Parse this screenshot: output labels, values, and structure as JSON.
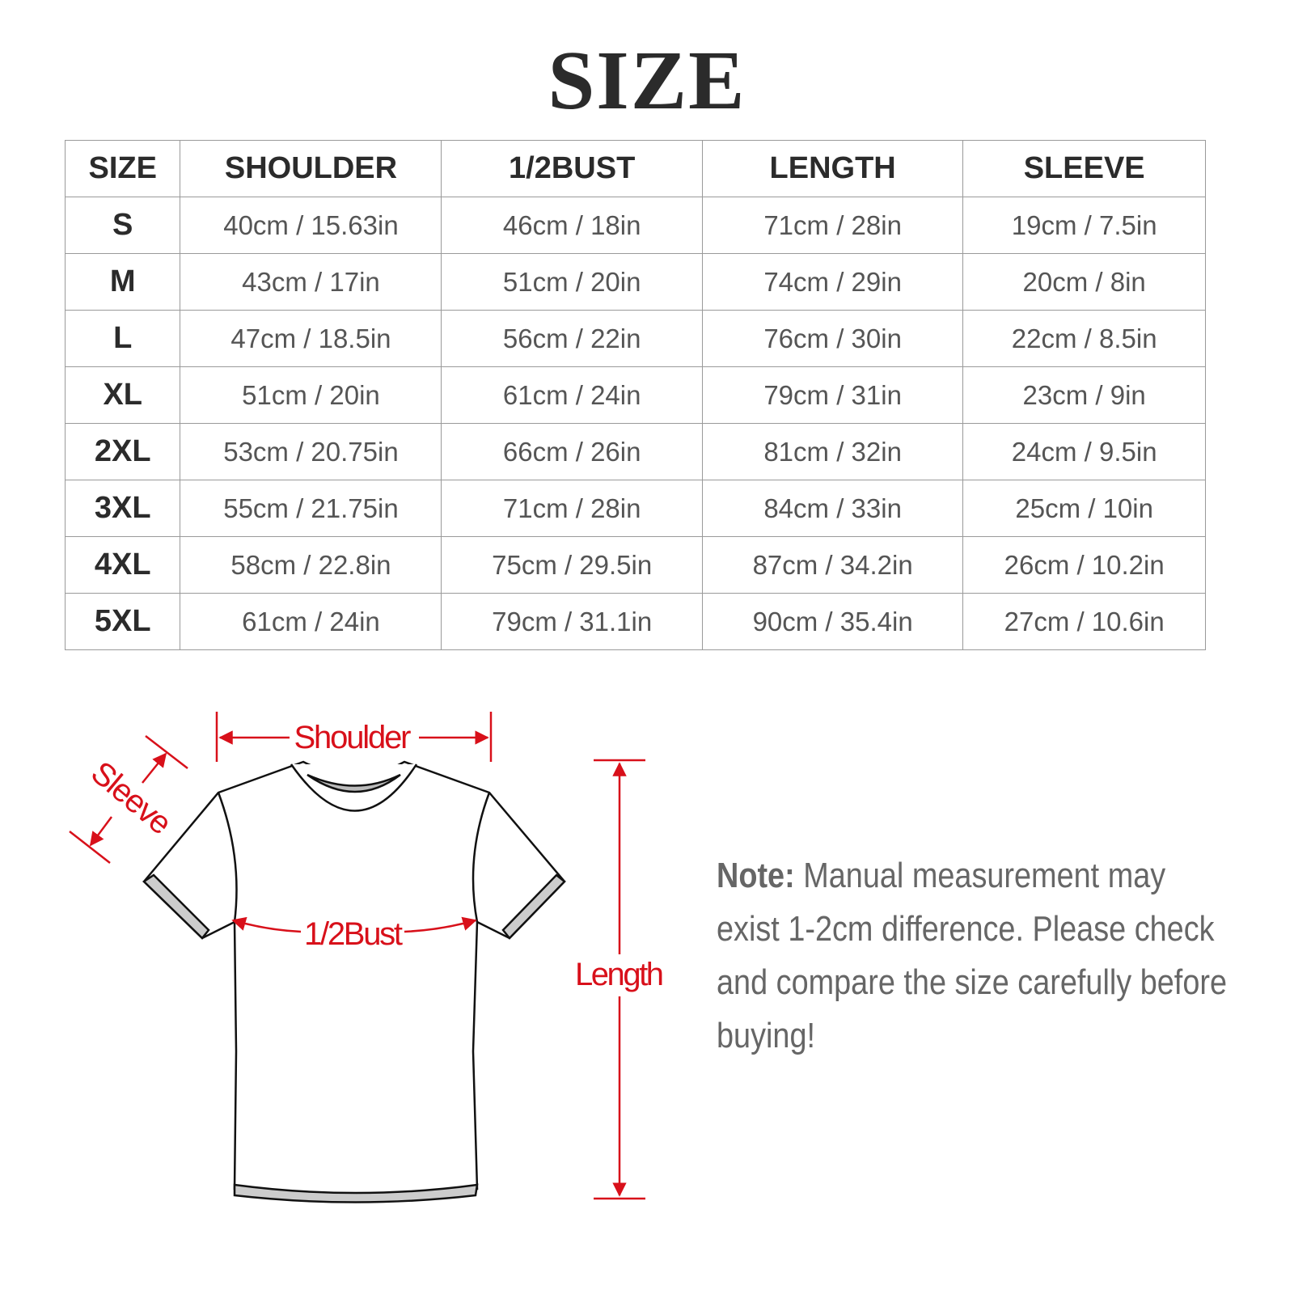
{
  "title": "SIZE",
  "table": {
    "headers": [
      "SIZE",
      "SHOULDER",
      "1/2BUST",
      "LENGTH",
      "SLEEVE"
    ],
    "rows": [
      [
        "S",
        "40cm / 15.63in",
        "46cm / 18in",
        "71cm / 28in",
        "19cm / 7.5in"
      ],
      [
        "M",
        "43cm / 17in",
        "51cm / 20in",
        "74cm / 29in",
        "20cm / 8in"
      ],
      [
        "L",
        "47cm / 18.5in",
        "56cm / 22in",
        "76cm / 30in",
        "22cm / 8.5in"
      ],
      [
        "XL",
        "51cm / 20in",
        "61cm / 24in",
        "79cm / 31in",
        "23cm / 9in"
      ],
      [
        "2XL",
        "53cm / 20.75in",
        "66cm / 26in",
        "81cm / 32in",
        "24cm / 9.5in"
      ],
      [
        "3XL",
        "55cm / 21.75in",
        "71cm / 28in",
        "84cm / 33in",
        "25cm / 10in"
      ],
      [
        "4XL",
        "58cm / 22.8in",
        "75cm / 29.5in",
        "87cm / 34.2in",
        "26cm / 10.2in"
      ],
      [
        "5XL",
        "61cm / 24in",
        "79cm / 31.1in",
        "90cm / 35.4in",
        "27cm / 10.6in"
      ]
    ]
  },
  "diagram": {
    "shoulder": "Shoulder",
    "sleeve": "Sleeve",
    "bust": "1/2Bust",
    "length": "Length",
    "accent_color": "#d8101a"
  },
  "note": {
    "label": "Note:",
    "text": " Manual measurement may exist 1-2cm difference. Please check and compare the size carefully before buying!"
  }
}
